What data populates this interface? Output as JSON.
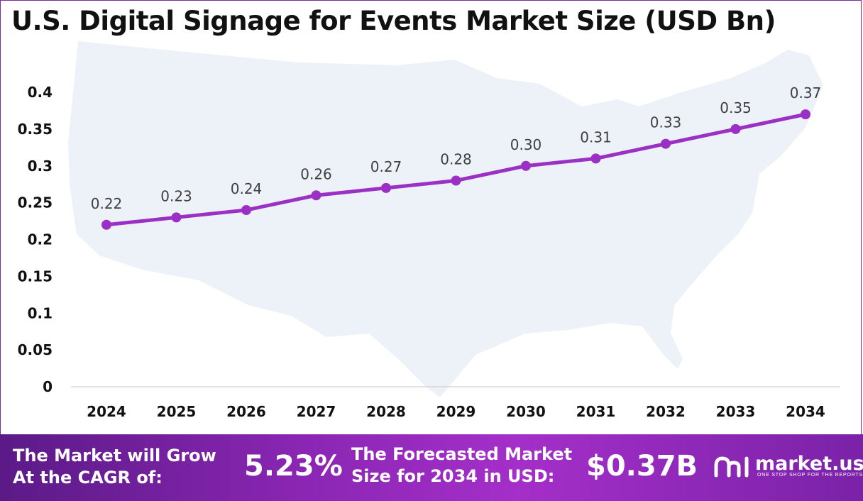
{
  "title": "U.S. Digital Signage for Events Market Size (USD Bn)",
  "colors": {
    "line": "#9b30c4",
    "map": "#edf1f8",
    "footer_start": "#5b1a87",
    "footer_end": "#a42fc9"
  },
  "chart_data": {
    "type": "line",
    "title": "U.S. Digital Signage for Events Market Size (USD Bn)",
    "categories": [
      "2024",
      "2025",
      "2026",
      "2027",
      "2028",
      "2029",
      "2030",
      "2031",
      "2032",
      "2033",
      "2034"
    ],
    "series": [
      {
        "values": [
          0.22,
          0.23,
          0.24,
          0.26,
          0.27,
          0.28,
          0.3,
          0.31,
          0.33,
          0.35,
          0.37
        ]
      }
    ],
    "data_labels": [
      "0.22",
      "0.23",
      "0.24",
      "0.26",
      "0.27",
      "0.28",
      "0.30",
      "0.31",
      "0.33",
      "0.35",
      "0.37"
    ],
    "y_ticks": [
      "0",
      "0.05",
      "0.1",
      "0.15",
      "0.2",
      "0.25",
      "0.3",
      "0.35",
      "0.4"
    ],
    "ylim": [
      0,
      0.4
    ],
    "grid": false,
    "legend": "none"
  },
  "footer": {
    "cagr_label_line1": "The Market will Grow",
    "cagr_label_line2": "At the CAGR of:",
    "cagr_value": "5.23%",
    "forecast_label_line1": "The Forecasted Market",
    "forecast_label_line2": "Size for 2034 in USD:",
    "forecast_value": "$0.37B",
    "brand_name": "market.us",
    "brand_tagline": "ONE STOP SHOP FOR THE REPORTS"
  }
}
